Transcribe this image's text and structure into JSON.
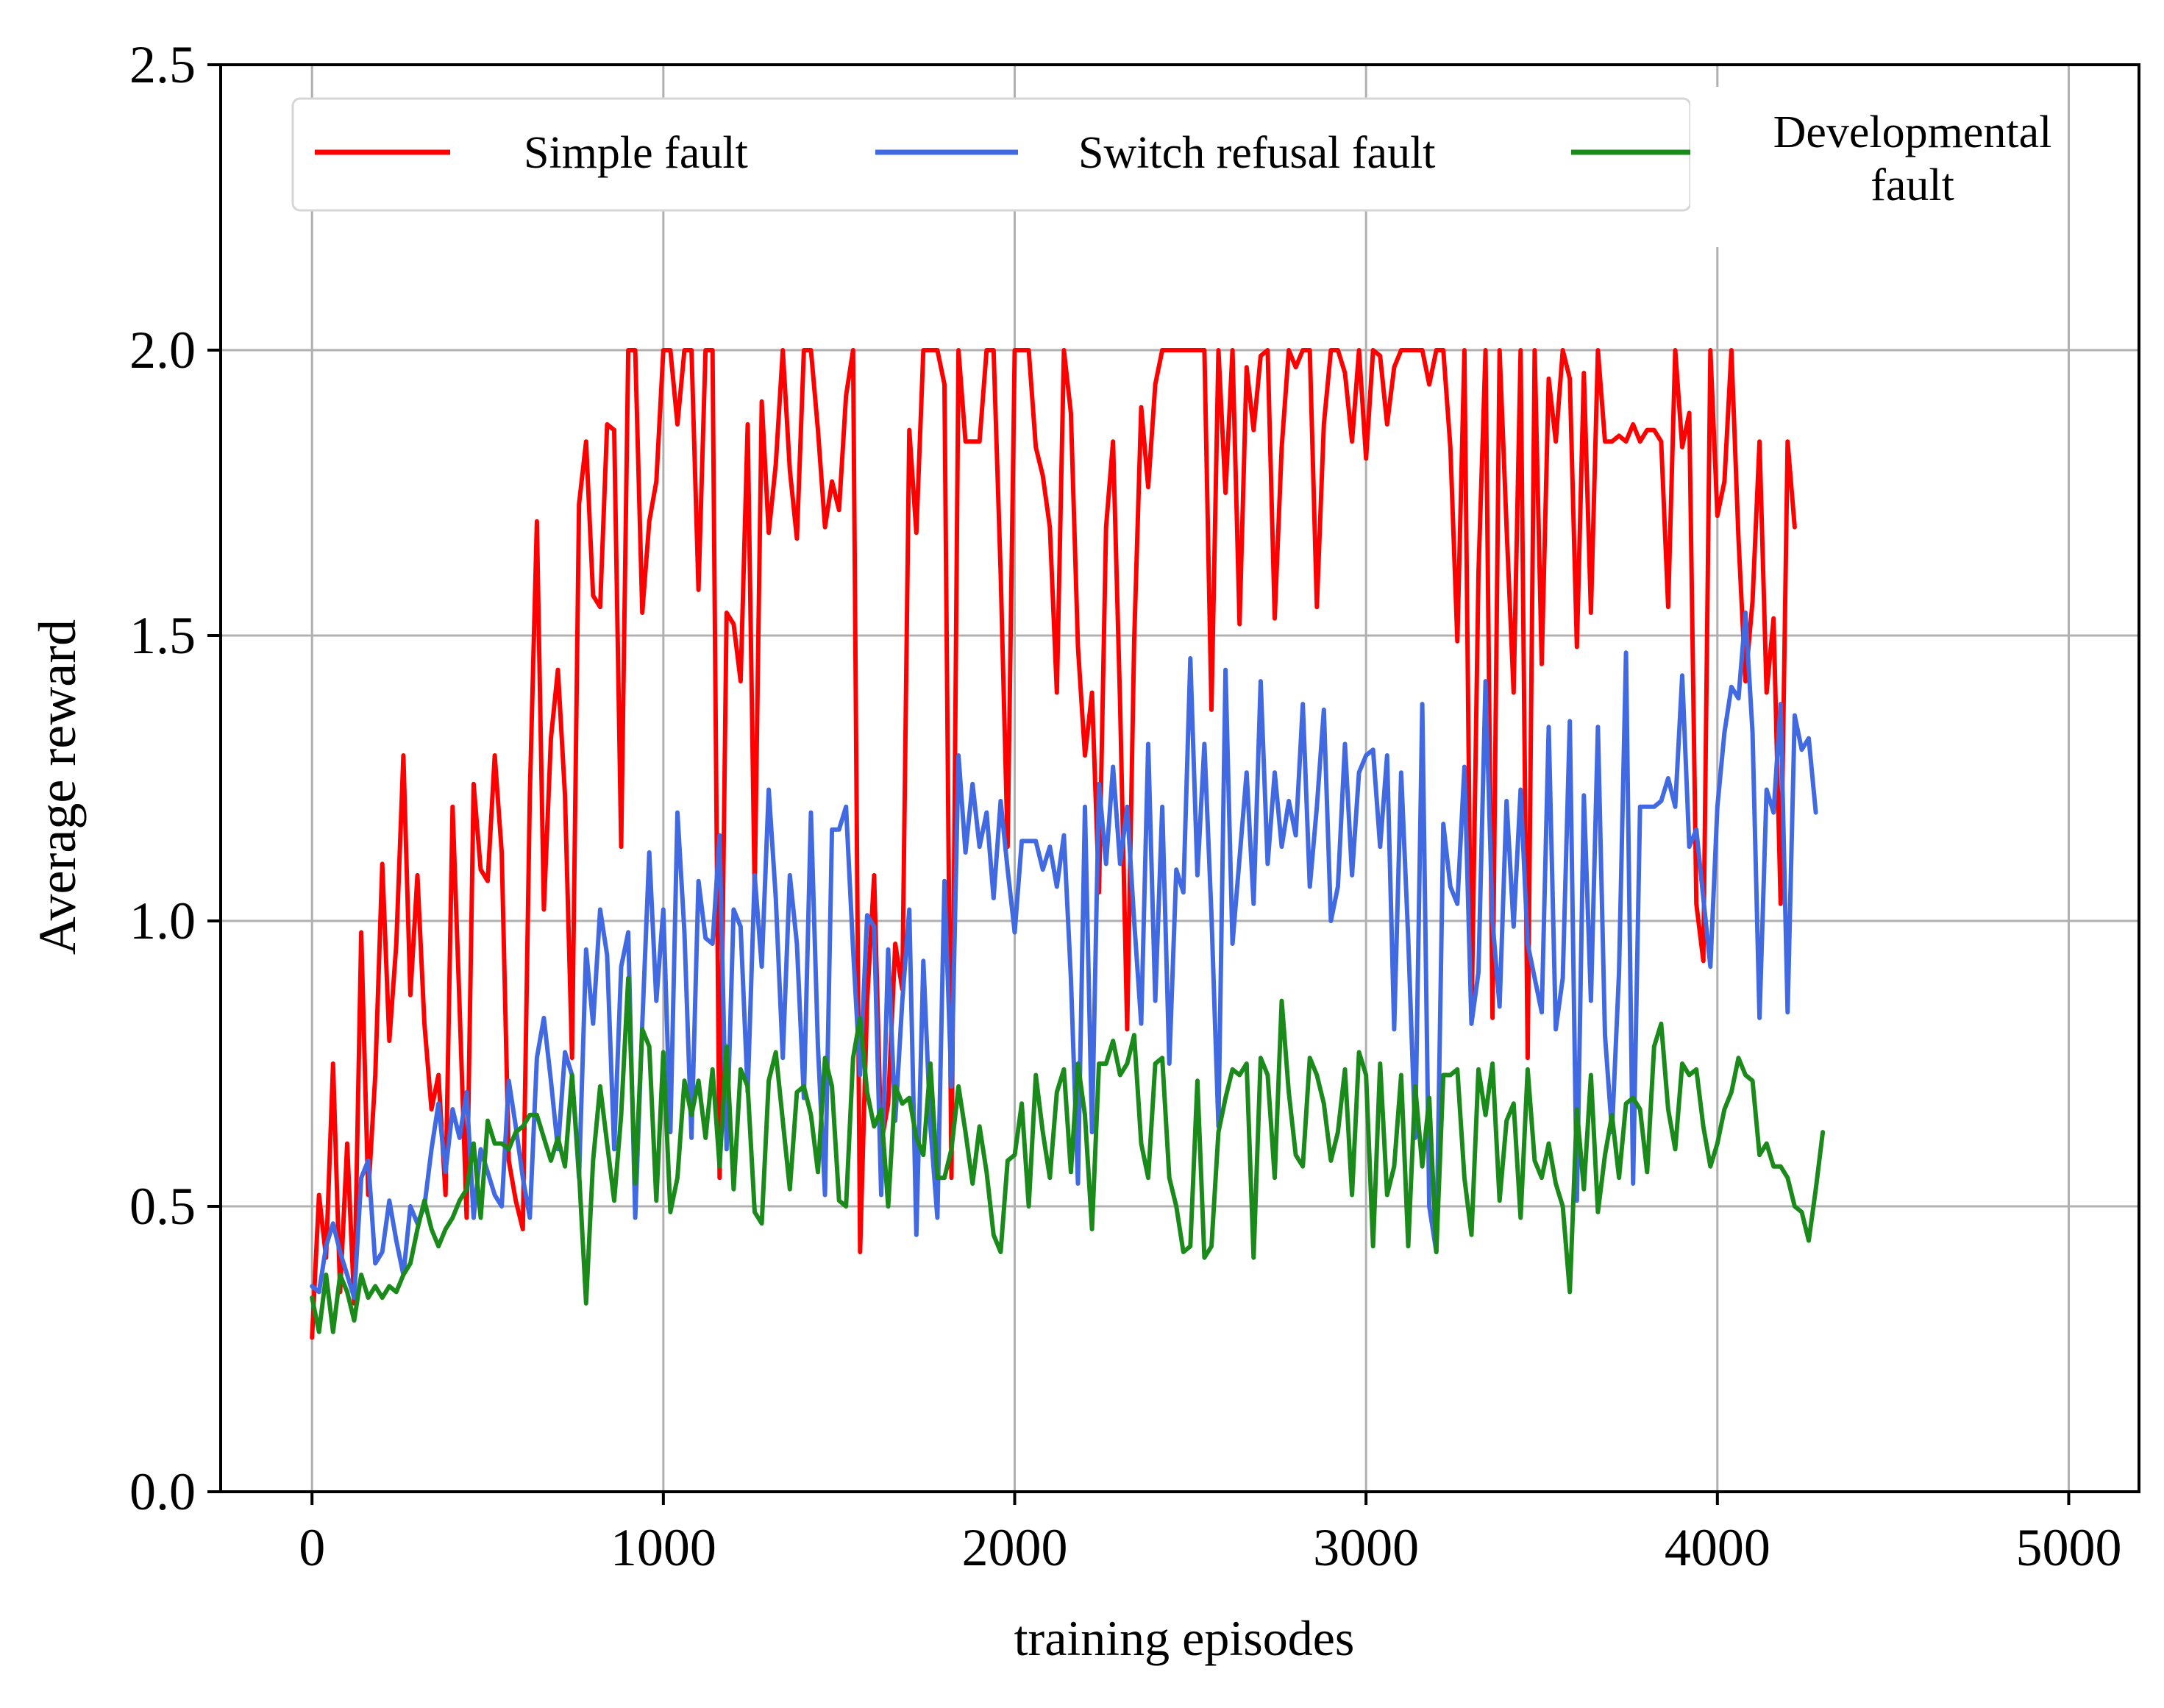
{
  "chart_data": {
    "type": "line",
    "title": "",
    "xlabel": "training episodes",
    "ylabel": "Average reward",
    "xlim": [
      -260,
      5200
    ],
    "ylim": [
      0,
      2.5
    ],
    "xticks": [
      0,
      1000,
      2000,
      3000,
      4000,
      5000
    ],
    "xtick_labels": [
      "0",
      "1000",
      "2000",
      "3000",
      "4000",
      "5000"
    ],
    "yticks": [
      0.0,
      0.5,
      1.0,
      1.5,
      2.0,
      2.5
    ],
    "ytick_labels": [
      "0.0",
      "0.5",
      "1.0",
      "1.5",
      "2.0",
      "2.5"
    ],
    "grid": true,
    "legend_position": "top",
    "x_start": 0,
    "x_step": 20,
    "series": [
      {
        "name": "Simple fault",
        "color": "#ff0000",
        "values": [
          0.27,
          0.52,
          0.41,
          0.75,
          0.35,
          0.61,
          0.33,
          0.98,
          0.52,
          0.73,
          1.1,
          0.79,
          0.96,
          1.29,
          0.87,
          1.08,
          0.82,
          0.67,
          0.73,
          0.52,
          1.2,
          0.85,
          0.48,
          1.24,
          1.09,
          1.07,
          1.29,
          1.12,
          0.58,
          0.51,
          0.46,
          1.22,
          1.7,
          1.02,
          1.32,
          1.44,
          1.22,
          0.76,
          1.73,
          1.84,
          1.57,
          1.55,
          1.87,
          1.86,
          1.13,
          2.0,
          2.0,
          1.54,
          1.7,
          1.77,
          2.0,
          2.0,
          1.87,
          2.0,
          2.0,
          1.58,
          2.0,
          2.0,
          0.55,
          1.54,
          1.52,
          1.42,
          1.87,
          1.05,
          1.91,
          1.68,
          1.8,
          2.0,
          1.79,
          1.67,
          2.0,
          2.0,
          1.86,
          1.69,
          1.77,
          1.72,
          1.92,
          2.0,
          0.42,
          0.86,
          1.08,
          0.61,
          0.68,
          0.96,
          0.88,
          1.86,
          1.68,
          2.0,
          2.0,
          2.0,
          1.94,
          0.55,
          2.0,
          1.84,
          1.84,
          1.84,
          2.0,
          2.0,
          1.61,
          1.13,
          2.0,
          2.0,
          2.0,
          1.83,
          1.78,
          1.69,
          1.4,
          2.0,
          1.89,
          1.48,
          1.29,
          1.4,
          1.05,
          1.69,
          1.84,
          1.38,
          0.81,
          1.49,
          1.9,
          1.76,
          1.94,
          2.0,
          2.0,
          2.0,
          2.0,
          2.0,
          2.0,
          2.0,
          1.37,
          2.0,
          1.75,
          2.0,
          1.52,
          1.97,
          1.86,
          1.99,
          2.0,
          1.53,
          1.83,
          2.0,
          1.97,
          2.0,
          2.0,
          1.55,
          1.87,
          2.0,
          2.0,
          1.96,
          1.84,
          2.0,
          1.81,
          2.0,
          1.99,
          1.87,
          1.97,
          2.0,
          2.0,
          2.0,
          2.0,
          1.94,
          2.0,
          2.0,
          1.83,
          1.49,
          2.0,
          0.82,
          1.61,
          2.0,
          0.83,
          2.0,
          1.69,
          1.4,
          2.0,
          0.76,
          2.0,
          1.45,
          1.95,
          1.84,
          2.0,
          1.95,
          1.48,
          1.96,
          1.54,
          2.0,
          1.84,
          1.84,
          1.85,
          1.84,
          1.87,
          1.84,
          1.86,
          1.86,
          1.84,
          1.55,
          2.0,
          1.83,
          1.89,
          1.03,
          0.93,
          2.0,
          1.71,
          1.77,
          2.0,
          1.67,
          1.42,
          1.56,
          1.84,
          1.4,
          1.53,
          1.03,
          1.84,
          1.69
        ]
      },
      {
        "name": "Switch refusal fault",
        "color": "#4169e1",
        "values": [
          0.36,
          0.35,
          0.43,
          0.47,
          0.42,
          0.38,
          0.34,
          0.55,
          0.58,
          0.4,
          0.42,
          0.51,
          0.44,
          0.38,
          0.5,
          0.47,
          0.5,
          0.6,
          0.68,
          0.56,
          0.67,
          0.62,
          0.7,
          0.48,
          0.6,
          0.56,
          0.52,
          0.5,
          0.72,
          0.64,
          0.55,
          0.48,
          0.76,
          0.83,
          0.72,
          0.6,
          0.77,
          0.73,
          0.55,
          0.95,
          0.82,
          1.02,
          0.94,
          0.6,
          0.92,
          0.98,
          0.48,
          0.82,
          1.12,
          0.86,
          1.02,
          0.63,
          1.19,
          0.98,
          0.62,
          1.07,
          0.97,
          0.96,
          1.15,
          0.6,
          1.02,
          0.99,
          0.7,
          1.08,
          0.92,
          1.23,
          1.04,
          0.76,
          1.08,
          0.96,
          0.69,
          1.19,
          0.78,
          0.52,
          1.16,
          1.16,
          1.2,
          0.95,
          0.73,
          1.01,
          0.99,
          0.52,
          0.95,
          0.65,
          0.86,
          1.02,
          0.45,
          0.93,
          0.64,
          0.48,
          1.07,
          0.71,
          1.29,
          1.12,
          1.24,
          1.13,
          1.19,
          1.04,
          1.21,
          1.09,
          0.98,
          1.14,
          1.14,
          1.14,
          1.09,
          1.13,
          1.06,
          1.15,
          0.9,
          0.54,
          1.2,
          0.63,
          1.24,
          1.1,
          1.27,
          1.1,
          1.2,
          1.0,
          0.82,
          1.31,
          0.86,
          1.2,
          0.75,
          1.09,
          1.05,
          1.46,
          1.08,
          1.31,
          1.01,
          0.64,
          1.44,
          0.96,
          1.11,
          1.26,
          1.03,
          1.42,
          1.1,
          1.26,
          1.13,
          1.21,
          1.15,
          1.38,
          1.06,
          1.2,
          1.37,
          1.0,
          1.06,
          1.31,
          1.08,
          1.26,
          1.29,
          1.3,
          1.13,
          1.29,
          0.81,
          1.26,
          0.97,
          0.62,
          1.38,
          0.5,
          0.42,
          1.17,
          1.06,
          1.03,
          1.27,
          0.82,
          0.91,
          1.42,
          1.0,
          0.85,
          1.21,
          0.99,
          1.23,
          0.96,
          0.9,
          0.84,
          1.34,
          0.81,
          0.9,
          1.35,
          0.51,
          1.22,
          0.86,
          1.34,
          0.8,
          0.63,
          0.91,
          1.47,
          0.54,
          1.2,
          1.2,
          1.2,
          1.21,
          1.25,
          1.2,
          1.43,
          1.13,
          1.16,
          1.04,
          0.92,
          1.2,
          1.33,
          1.41,
          1.39,
          1.54,
          1.33,
          0.83,
          1.23,
          1.19,
          1.38,
          0.84,
          1.36,
          1.3,
          1.32,
          1.19
        ]
      },
      {
        "name": "Developmental fault",
        "color": "#1a8a1a",
        "values": [
          0.34,
          0.28,
          0.38,
          0.28,
          0.38,
          0.35,
          0.3,
          0.38,
          0.34,
          0.36,
          0.34,
          0.36,
          0.35,
          0.38,
          0.4,
          0.46,
          0.51,
          0.46,
          0.43,
          0.46,
          0.48,
          0.51,
          0.53,
          0.61,
          0.48,
          0.65,
          0.61,
          0.61,
          0.6,
          0.63,
          0.64,
          0.66,
          0.66,
          0.62,
          0.58,
          0.62,
          0.57,
          0.73,
          0.56,
          0.33,
          0.58,
          0.71,
          0.61,
          0.51,
          0.66,
          0.9,
          0.54,
          0.81,
          0.78,
          0.51,
          0.77,
          0.49,
          0.55,
          0.72,
          0.66,
          0.72,
          0.62,
          0.74,
          0.57,
          0.78,
          0.53,
          0.74,
          0.71,
          0.49,
          0.47,
          0.72,
          0.77,
          0.65,
          0.53,
          0.7,
          0.71,
          0.66,
          0.56,
          0.76,
          0.71,
          0.51,
          0.5,
          0.76,
          0.83,
          0.7,
          0.64,
          0.67,
          0.5,
          0.71,
          0.68,
          0.69,
          0.62,
          0.59,
          0.75,
          0.55,
          0.55,
          0.6,
          0.71,
          0.63,
          0.54,
          0.64,
          0.56,
          0.45,
          0.42,
          0.58,
          0.59,
          0.68,
          0.5,
          0.73,
          0.63,
          0.55,
          0.7,
          0.74,
          0.56,
          0.75,
          0.66,
          0.46,
          0.75,
          0.75,
          0.79,
          0.73,
          0.75,
          0.8,
          0.61,
          0.55,
          0.75,
          0.76,
          0.55,
          0.5,
          0.42,
          0.43,
          0.72,
          0.41,
          0.43,
          0.63,
          0.69,
          0.74,
          0.73,
          0.75,
          0.41,
          0.76,
          0.73,
          0.55,
          0.86,
          0.7,
          0.59,
          0.57,
          0.76,
          0.73,
          0.68,
          0.58,
          0.63,
          0.74,
          0.52,
          0.77,
          0.73,
          0.43,
          0.75,
          0.52,
          0.57,
          0.73,
          0.43,
          0.71,
          0.57,
          0.69,
          0.42,
          0.73,
          0.73,
          0.74,
          0.55,
          0.45,
          0.74,
          0.66,
          0.75,
          0.51,
          0.65,
          0.68,
          0.48,
          0.74,
          0.58,
          0.55,
          0.61,
          0.54,
          0.5,
          0.35,
          0.67,
          0.53,
          0.73,
          0.49,
          0.59,
          0.66,
          0.55,
          0.68,
          0.69,
          0.67,
          0.56,
          0.78,
          0.82,
          0.67,
          0.6,
          0.75,
          0.73,
          0.74,
          0.64,
          0.57,
          0.61,
          0.67,
          0.7,
          0.76,
          0.73,
          0.72,
          0.59,
          0.61,
          0.57,
          0.57,
          0.55,
          0.5,
          0.49,
          0.44,
          0.53,
          0.63
        ]
      }
    ]
  }
}
